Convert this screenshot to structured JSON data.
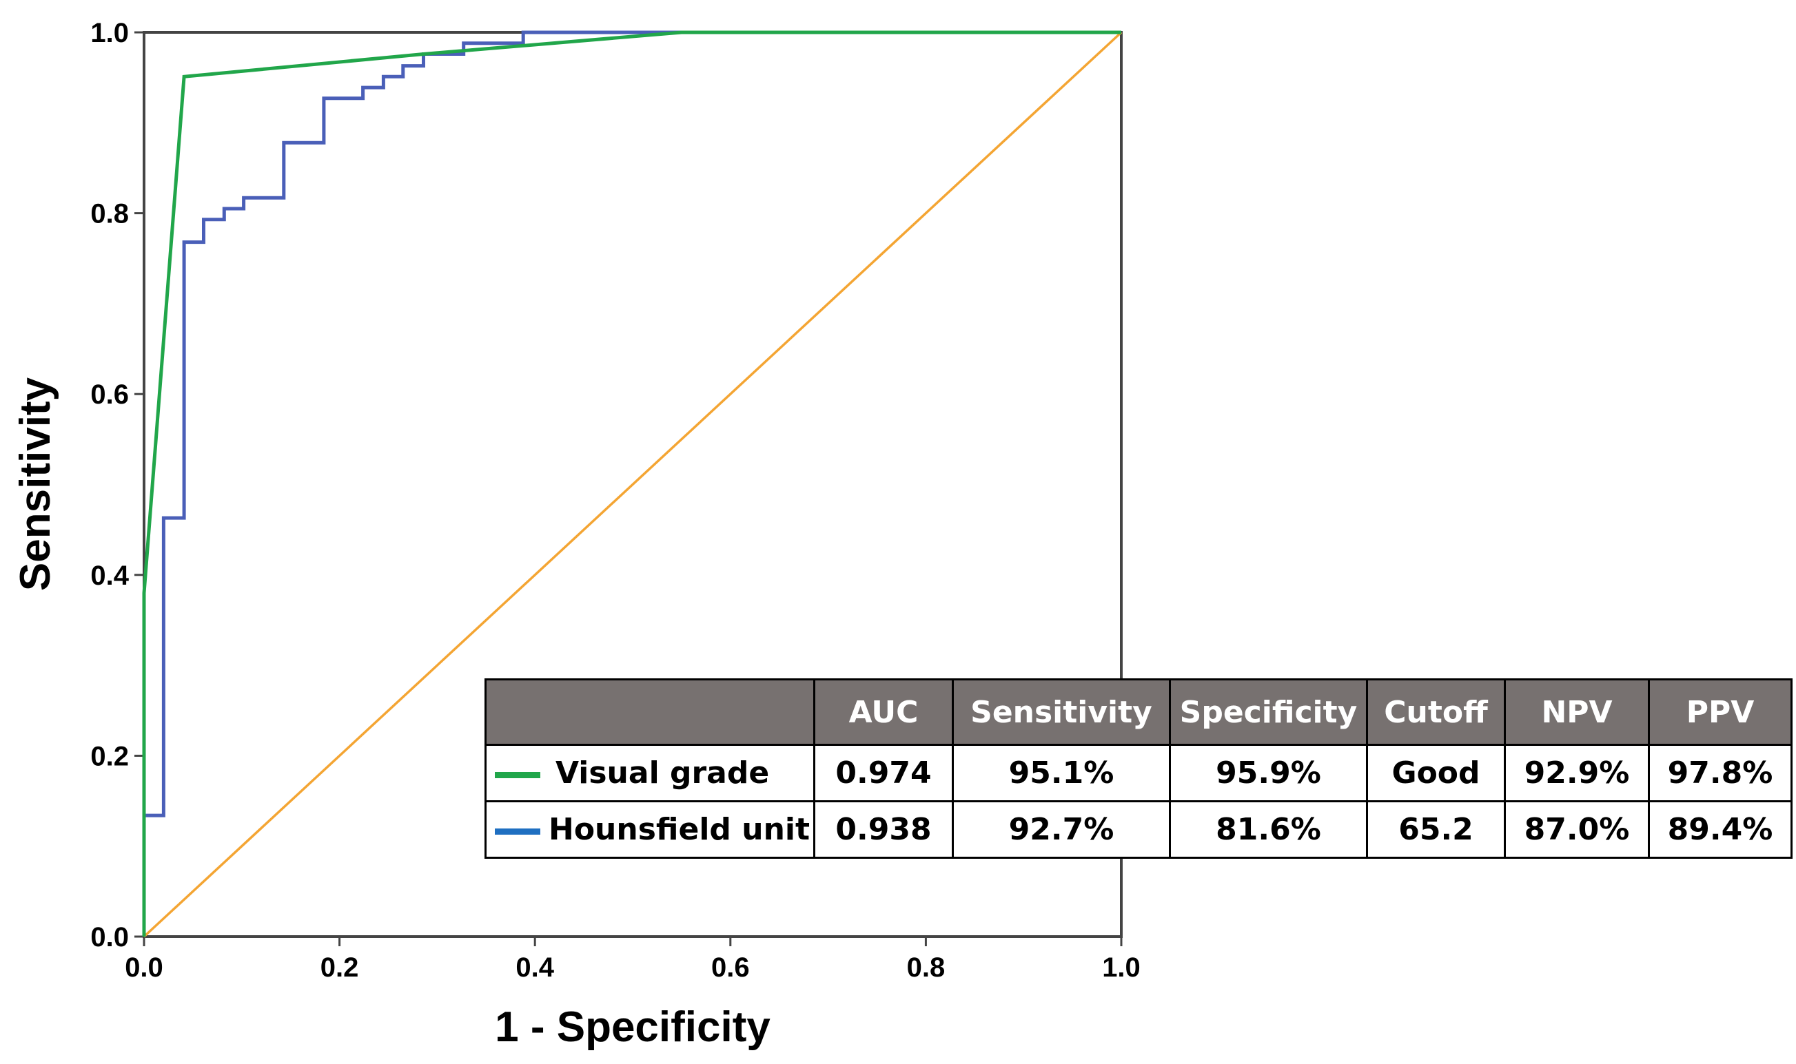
{
  "chart_data": {
    "type": "line",
    "title": "",
    "xlabel": "1 - Specificity",
    "ylabel": "Sensitivity",
    "xlim": [
      0,
      1
    ],
    "ylim": [
      0,
      1
    ],
    "xticks": [
      0.0,
      0.2,
      0.4,
      0.6,
      0.8,
      1.0
    ],
    "yticks": [
      0.0,
      0.2,
      0.4,
      0.6,
      0.8,
      1.0
    ],
    "xtick_labels": [
      "0.0",
      "0.2",
      "0.4",
      "0.6",
      "0.8",
      "1.0"
    ],
    "ytick_labels": [
      "0.0",
      "0.2",
      "0.4",
      "0.6",
      "0.8",
      "1.0"
    ],
    "series": [
      {
        "name": "Visual grade",
        "color": "#21a64a",
        "x": [
          0.0,
          0.0,
          0.041,
          0.286,
          0.55,
          1.0
        ],
        "y": [
          0.0,
          0.38,
          0.951,
          0.976,
          1.0,
          1.0
        ]
      },
      {
        "name": "Hounsfield unit",
        "color": "#4a5fb8",
        "x": [
          0.0,
          0.0,
          0.02,
          0.02,
          0.041,
          0.041,
          0.061,
          0.061,
          0.082,
          0.082,
          0.102,
          0.102,
          0.143,
          0.143,
          0.184,
          0.184,
          0.224,
          0.224,
          0.245,
          0.245,
          0.265,
          0.265,
          0.286,
          0.286,
          0.327,
          0.327,
          0.388,
          0.388,
          1.0
        ],
        "y": [
          0.0,
          0.134,
          0.134,
          0.463,
          0.463,
          0.768,
          0.768,
          0.793,
          0.793,
          0.805,
          0.805,
          0.817,
          0.817,
          0.878,
          0.878,
          0.927,
          0.927,
          0.939,
          0.939,
          0.951,
          0.951,
          0.963,
          0.963,
          0.976,
          0.976,
          0.988,
          0.988,
          1.0,
          1.0
        ]
      },
      {
        "name": "Reference line",
        "color": "#f4a533",
        "x": [
          0.0,
          1.0
        ],
        "y": [
          0.0,
          1.0
        ]
      }
    ]
  },
  "table": {
    "headers": [
      "",
      "AUC",
      "Sensitivity",
      "Specificity",
      "Cutoff",
      "NPV",
      "PPV"
    ],
    "rows": [
      {
        "label": "Visual grade",
        "color": "#21a64a",
        "values": [
          "0.974",
          "95.1%",
          "95.9%",
          "Good",
          "92.9%",
          "97.8%"
        ]
      },
      {
        "label": "Hounsfield unit",
        "color": "#1f6fc1",
        "values": [
          "0.938",
          "92.7%",
          "81.6%",
          "65.2",
          "87.0%",
          "89.4%"
        ]
      }
    ]
  }
}
